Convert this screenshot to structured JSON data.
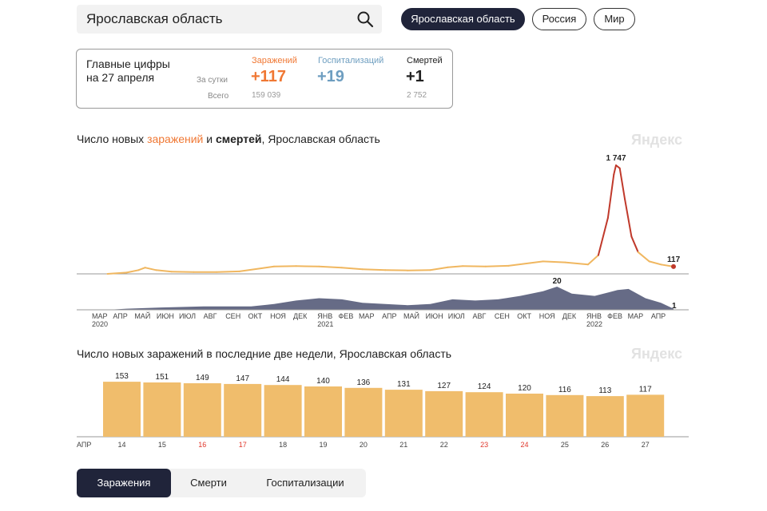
{
  "search": {
    "value": "Ярославская область"
  },
  "region_pills": [
    {
      "label": "Ярославская область",
      "active": true
    },
    {
      "label": "Россия",
      "active": false
    },
    {
      "label": "Мир",
      "active": false
    }
  ],
  "stats": {
    "title_line1": "Главные цифры",
    "title_line2": "на 27 апреля",
    "row_daily": "За сутки",
    "row_total": "Всего",
    "infections": {
      "label": "Заражений",
      "daily": "+117",
      "total": "159 039",
      "color": "#f07834"
    },
    "hospitalizations": {
      "label": "Госпитализаций",
      "daily": "+19",
      "total": "",
      "color": "#6e9ec0"
    },
    "deaths": {
      "label": "Смертей",
      "daily": "+1",
      "total": "2 752",
      "color": "#222222"
    }
  },
  "chart1": {
    "title_pre": "Число новых ",
    "title_infections": "заражений",
    "title_mid": " и ",
    "title_deaths": "смертей",
    "title_post": ", Ярославская область",
    "brand": "Яндекс"
  },
  "chart2": {
    "title": "Число новых заражений в последние две недели, Ярославская область",
    "brand": "Яндекс"
  },
  "chart_data": [
    {
      "type": "line",
      "series": [
        {
          "name": "заражений",
          "color": "#f0b760",
          "peak_color": "#c0392b",
          "points": [
            [
              "2020-03-20",
              0
            ],
            [
              "2020-04-15",
              20
            ],
            [
              "2020-05-01",
              60
            ],
            [
              "2020-05-10",
              100
            ],
            [
              "2020-05-25",
              60
            ],
            [
              "2020-06-15",
              35
            ],
            [
              "2020-07-15",
              30
            ],
            [
              "2020-08-15",
              30
            ],
            [
              "2020-09-15",
              40
            ],
            [
              "2020-10-15",
              90
            ],
            [
              "2020-11-01",
              120
            ],
            [
              "2020-12-01",
              125
            ],
            [
              "2021-01-01",
              120
            ],
            [
              "2021-02-01",
              100
            ],
            [
              "2021-03-01",
              75
            ],
            [
              "2021-04-01",
              60
            ],
            [
              "2021-05-01",
              55
            ],
            [
              "2021-06-01",
              60
            ],
            [
              "2021-06-25",
              105
            ],
            [
              "2021-07-15",
              125
            ],
            [
              "2021-08-15",
              120
            ],
            [
              "2021-09-15",
              130
            ],
            [
              "2021-10-15",
              175
            ],
            [
              "2021-11-01",
              200
            ],
            [
              "2021-12-01",
              185
            ],
            [
              "2022-01-01",
              150
            ],
            [
              "2022-01-15",
              300
            ],
            [
              "2022-01-28",
              900
            ],
            [
              "2022-02-05",
              1600
            ],
            [
              "2022-02-08",
              1747
            ],
            [
              "2022-02-13",
              1700
            ],
            [
              "2022-02-20",
              1200
            ],
            [
              "2022-03-01",
              600
            ],
            [
              "2022-03-10",
              350
            ],
            [
              "2022-03-25",
              200
            ],
            [
              "2022-04-10",
              150
            ],
            [
              "2022-04-27",
              117
            ]
          ],
          "annotations": [
            {
              "label": "1 747",
              "date": "2022-02-08",
              "value": 1747
            },
            {
              "label": "117",
              "date": "2022-04-27",
              "value": 117
            }
          ]
        },
        {
          "name": "смертей",
          "color": "#5e6380",
          "type": "area",
          "points": [
            [
              "2020-03-20",
              0
            ],
            [
              "2020-04-15",
              1
            ],
            [
              "2020-06-01",
              2
            ],
            [
              "2020-08-01",
              3
            ],
            [
              "2020-10-01",
              3
            ],
            [
              "2020-11-01",
              5
            ],
            [
              "2020-12-01",
              8
            ],
            [
              "2021-01-01",
              10
            ],
            [
              "2021-02-01",
              9
            ],
            [
              "2021-03-01",
              6
            ],
            [
              "2021-04-01",
              5
            ],
            [
              "2021-05-01",
              4
            ],
            [
              "2021-06-01",
              5
            ],
            [
              "2021-07-01",
              9
            ],
            [
              "2021-08-01",
              8
            ],
            [
              "2021-09-01",
              9
            ],
            [
              "2021-10-01",
              12
            ],
            [
              "2021-11-01",
              16
            ],
            [
              "2021-11-20",
              20
            ],
            [
              "2021-12-10",
              14
            ],
            [
              "2022-01-10",
              12
            ],
            [
              "2022-02-10",
              17
            ],
            [
              "2022-02-25",
              18
            ],
            [
              "2022-03-20",
              10
            ],
            [
              "2022-04-10",
              6
            ],
            [
              "2022-04-27",
              1
            ]
          ],
          "annotations": [
            {
              "label": "20",
              "date": "2021-11-20",
              "value": 20
            },
            {
              "label": "1",
              "date": "2022-04-27",
              "value": 1
            }
          ]
        }
      ],
      "x_ticks": [
        {
          "label": "МАР",
          "sub": "2020",
          "date": "2020-03-01"
        },
        {
          "label": "АПР",
          "sub": "",
          "date": "2020-04-01"
        },
        {
          "label": "МАЙ",
          "sub": "",
          "date": "2020-05-01"
        },
        {
          "label": "ИЮН",
          "sub": "",
          "date": "2020-06-01"
        },
        {
          "label": "ИЮЛ",
          "sub": "",
          "date": "2020-07-01"
        },
        {
          "label": "АВГ",
          "sub": "",
          "date": "2020-08-01"
        },
        {
          "label": "СЕН",
          "sub": "",
          "date": "2020-09-01"
        },
        {
          "label": "ОКТ",
          "sub": "",
          "date": "2020-10-01"
        },
        {
          "label": "НОЯ",
          "sub": "",
          "date": "2020-11-01"
        },
        {
          "label": "ДЕК",
          "sub": "",
          "date": "2020-12-01"
        },
        {
          "label": "ЯНВ",
          "sub": "2021",
          "date": "2021-01-01"
        },
        {
          "label": "ФЕВ",
          "sub": "",
          "date": "2021-02-01"
        },
        {
          "label": "МАР",
          "sub": "",
          "date": "2021-03-01"
        },
        {
          "label": "АПР",
          "sub": "",
          "date": "2021-04-01"
        },
        {
          "label": "МАЙ",
          "sub": "",
          "date": "2021-05-01"
        },
        {
          "label": "ИЮН",
          "sub": "",
          "date": "2021-06-01"
        },
        {
          "label": "ИЮЛ",
          "sub": "",
          "date": "2021-07-01"
        },
        {
          "label": "АВГ",
          "sub": "",
          "date": "2021-08-01"
        },
        {
          "label": "СЕН",
          "sub": "",
          "date": "2021-09-01"
        },
        {
          "label": "ОКТ",
          "sub": "",
          "date": "2021-10-01"
        },
        {
          "label": "НОЯ",
          "sub": "",
          "date": "2021-11-01"
        },
        {
          "label": "ДЕК",
          "sub": "",
          "date": "2021-12-01"
        },
        {
          "label": "ЯНВ",
          "sub": "2022",
          "date": "2022-01-01"
        },
        {
          "label": "ФЕВ",
          "sub": "",
          "date": "2022-02-01"
        },
        {
          "label": "МАР",
          "sub": "",
          "date": "2022-03-01"
        },
        {
          "label": "АПР",
          "sub": "",
          "date": "2022-04-01"
        }
      ]
    },
    {
      "type": "bar",
      "month_label": "АПР",
      "categories": [
        "14",
        "15",
        "16",
        "17",
        "18",
        "19",
        "20",
        "21",
        "22",
        "23",
        "24",
        "25",
        "26",
        "27"
      ],
      "values": [
        153,
        151,
        149,
        147,
        144,
        140,
        136,
        131,
        127,
        124,
        120,
        116,
        113,
        117
      ],
      "weekend": [
        false,
        false,
        true,
        true,
        false,
        false,
        false,
        false,
        false,
        true,
        true,
        false,
        false,
        false
      ],
      "bar_color": "#f0bd6c",
      "weekend_label_color": "#e0382c"
    }
  ],
  "bottom_tabs": [
    {
      "label": "Заражения",
      "active": true
    },
    {
      "label": "Смерти",
      "active": false
    },
    {
      "label": "Госпитализации",
      "active": false
    }
  ]
}
